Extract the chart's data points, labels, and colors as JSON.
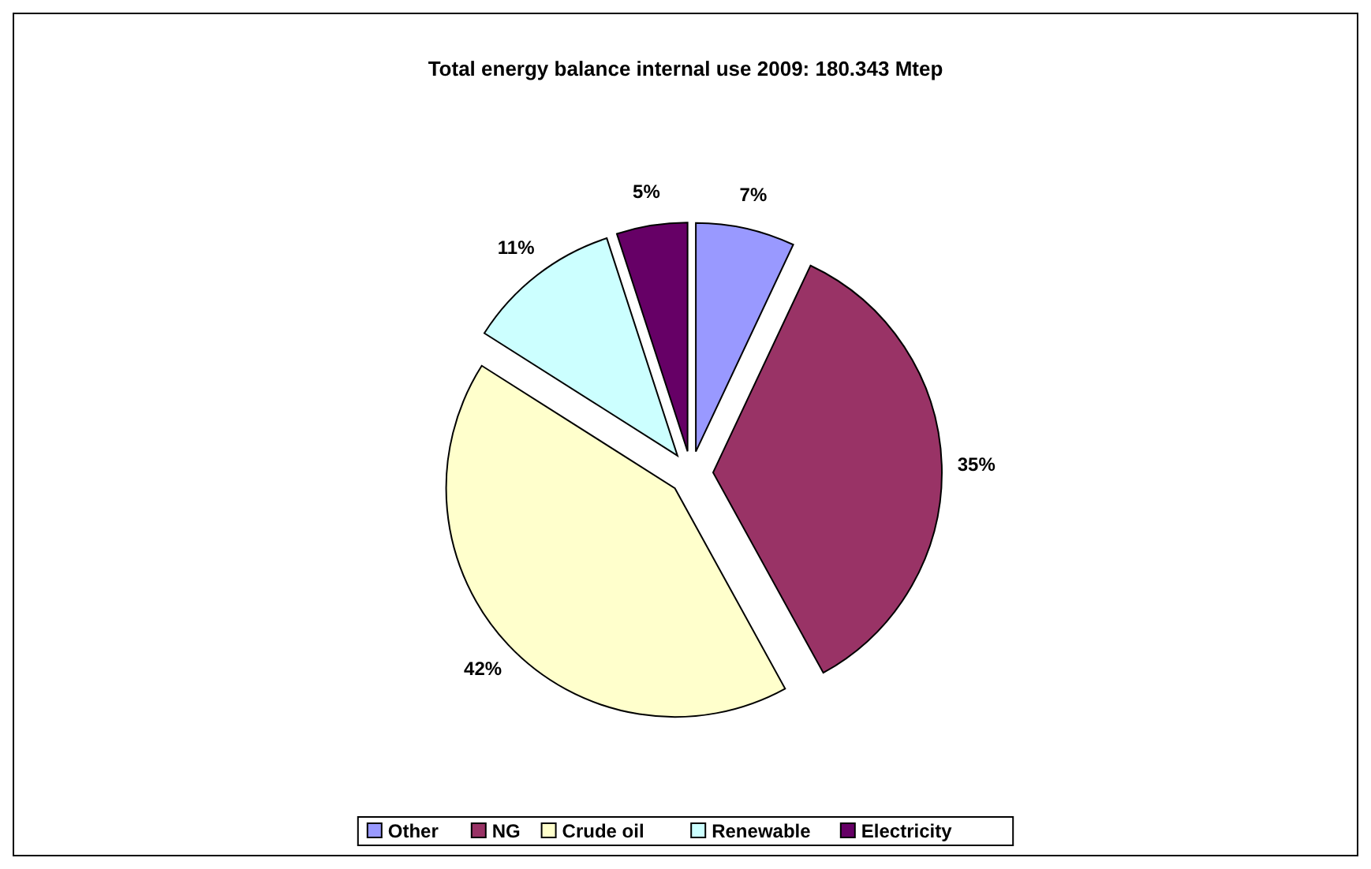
{
  "chart_data": {
    "type": "pie",
    "title": "Total energy balance internal use 2009: 180.343 Mtep",
    "categories": [
      "Other",
      "NG",
      "Crude oil",
      "Renewable",
      "Electricity"
    ],
    "values": [
      7,
      35,
      42,
      11,
      5
    ],
    "value_labels": [
      "7%",
      "35%",
      "42%",
      "11%",
      "5%"
    ],
    "colors": [
      "#9999ff",
      "#993366",
      "#ffffcc",
      "#ccffff",
      "#660066"
    ],
    "legend": "bottom"
  }
}
